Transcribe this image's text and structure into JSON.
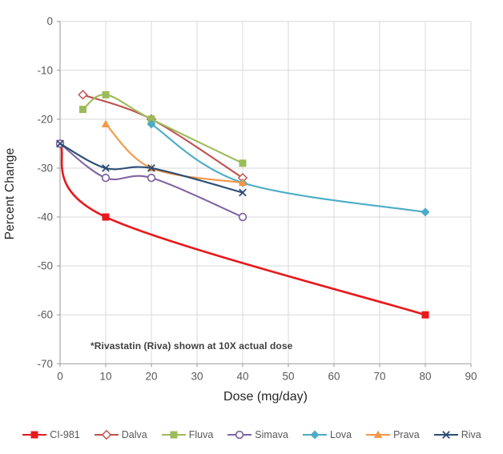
{
  "chart_data": {
    "type": "line",
    "title": "",
    "xlabel": "Dose (mg/day)",
    "ylabel": "Percent Change",
    "xlim": [
      0,
      90
    ],
    "ylim": [
      -70,
      0
    ],
    "x_ticks": [
      0,
      10,
      20,
      30,
      40,
      50,
      60,
      70,
      80,
      90
    ],
    "y_ticks": [
      0,
      -10,
      -20,
      -30,
      -40,
      -50,
      -60,
      -70
    ],
    "grid": true,
    "legend_position": "bottom",
    "annotation": "*Rivastatin (Riva) shown at 10X actual dose",
    "series": [
      {
        "name": "CI-981",
        "color": "#e8191c",
        "marker": "square",
        "x": [
          0,
          10,
          80
        ],
        "y": [
          -25,
          -40,
          -60
        ]
      },
      {
        "name": "Dalva",
        "color": "#c0504d",
        "marker": "open-diamond",
        "x": [
          5,
          20,
          40
        ],
        "y": [
          -15,
          -20,
          -32
        ]
      },
      {
        "name": "Fluva",
        "color": "#9bbb59",
        "marker": "square",
        "x": [
          5,
          10,
          20,
          40
        ],
        "y": [
          -18,
          -15,
          -20,
          -29
        ]
      },
      {
        "name": "Simava",
        "color": "#8064a2",
        "marker": "open-circle",
        "x": [
          0,
          10,
          20,
          40
        ],
        "y": [
          -25,
          -32,
          -32,
          -40
        ]
      },
      {
        "name": "Lova",
        "color": "#4bacc6",
        "marker": "diamond",
        "x": [
          20,
          40,
          80
        ],
        "y": [
          -21,
          -33,
          -39
        ]
      },
      {
        "name": "Prava",
        "color": "#f79646",
        "marker": "triangle",
        "x": [
          10,
          20,
          40
        ],
        "y": [
          -21,
          -30,
          -33
        ]
      },
      {
        "name": "Riva",
        "color": "#2c4d75",
        "marker": "x",
        "x": [
          0,
          10,
          20,
          40
        ],
        "y": [
          -25,
          -30,
          -30,
          -35
        ]
      }
    ],
    "colors": {
      "gridline": "#d9d9d9",
      "axis_line": "#a6a6a6",
      "tick_label": "#595959",
      "background": "#ffffff"
    }
  }
}
